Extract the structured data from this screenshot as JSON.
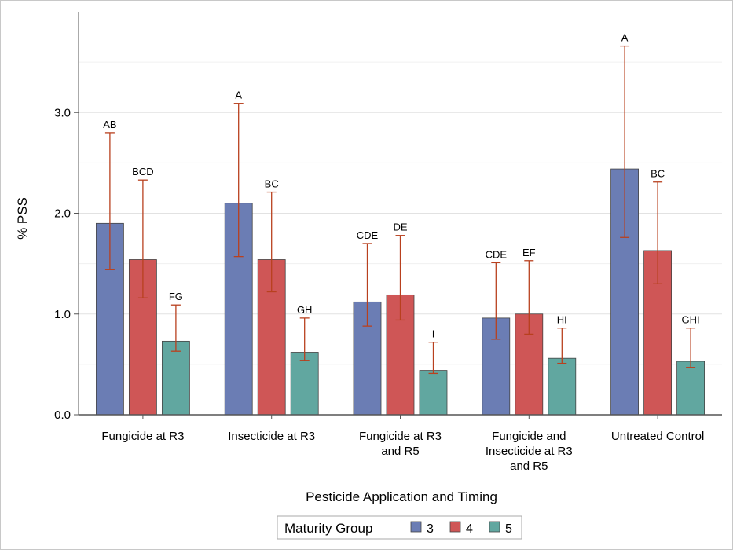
{
  "chart_data": {
    "type": "bar",
    "xlabel": "Pesticide Application and Timing",
    "ylabel": "% PSS",
    "ylim": [
      0,
      4.0
    ],
    "yticks": [
      "0.0",
      "1.0",
      "2.0",
      "3.0"
    ],
    "y_tick_values": [
      0,
      1,
      2,
      3
    ],
    "minor_grid_values": [
      0.5,
      1.5,
      2.5,
      3.5
    ],
    "grid": true,
    "categories": [
      [
        "Fungicide at R3"
      ],
      [
        "Insecticide at R3"
      ],
      [
        "Fungicide at R3",
        "and R5"
      ],
      [
        "Fungicide and",
        "Insecticide at R3",
        "and R5"
      ],
      [
        "Untreated Control"
      ]
    ],
    "legend": {
      "title": "Maturity Group",
      "position": "bottom-center"
    },
    "error_bar_color": "#b8401e",
    "series": [
      {
        "name": "3",
        "color": "#6b7db4",
        "values": [
          1.9,
          2.1,
          1.12,
          0.96,
          2.44
        ],
        "err_low": [
          1.44,
          1.57,
          0.88,
          0.75,
          1.76
        ],
        "err_high": [
          2.8,
          3.09,
          1.7,
          1.51,
          3.66
        ],
        "letters": [
          "AB",
          "A",
          "CDE",
          "CDE",
          "A"
        ]
      },
      {
        "name": "4",
        "color": "#cf5656",
        "values": [
          1.54,
          1.54,
          1.19,
          1.0,
          1.63
        ],
        "err_low": [
          1.16,
          1.22,
          0.94,
          0.8,
          1.3
        ],
        "err_high": [
          2.33,
          2.21,
          1.78,
          1.53,
          2.31
        ],
        "letters": [
          "BCD",
          "BC",
          "DE",
          "EF",
          "BC"
        ]
      },
      {
        "name": "5",
        "color": "#61a7a0",
        "values": [
          0.73,
          0.62,
          0.44,
          0.56,
          0.53
        ],
        "err_low": [
          0.63,
          0.54,
          0.41,
          0.51,
          0.47
        ],
        "err_high": [
          1.09,
          0.96,
          0.72,
          0.86,
          0.86
        ],
        "letters": [
          "FG",
          "GH",
          "I",
          "HI",
          "GHI"
        ]
      }
    ]
  }
}
